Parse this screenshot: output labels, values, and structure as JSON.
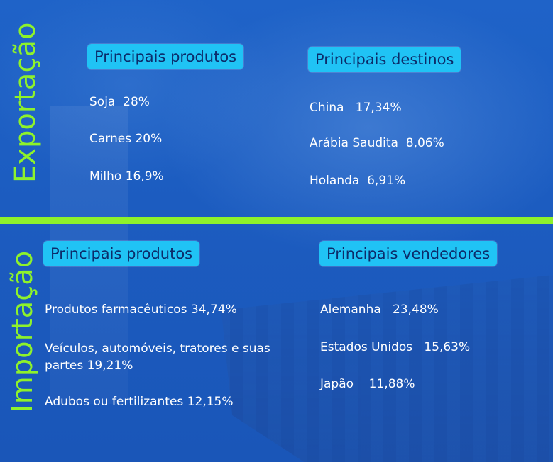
{
  "export": {
    "label": "Exportação",
    "products": {
      "title": "Principais produtos",
      "items": [
        "Soja  28%",
        "Carnes 20%",
        "Milho 16,9%"
      ]
    },
    "destinations": {
      "title": "Principais destinos",
      "items": [
        "China   17,34%",
        "Arábia Saudita  8,06%",
        "Holanda  6,91%"
      ]
    }
  },
  "import": {
    "label": "Importação",
    "products": {
      "title": "Principais produtos",
      "items": [
        "Produtos farmacêuticos 34,74%",
        "Veículos, automóveis, tratores e suas partes 19,21%",
        "Adubos ou fertilizantes 12,15%"
      ]
    },
    "sellers": {
      "title": "Principais vendedores",
      "items": [
        "Alemanha   23,48%",
        "Estados Unidos   15,63%",
        "Japão    11,88%"
      ]
    }
  },
  "colors": {
    "background": "#1d5fc4",
    "accent_green": "#8ef22b",
    "pill_cyan": "#20c3f5",
    "pill_text": "#0c2c6a"
  }
}
